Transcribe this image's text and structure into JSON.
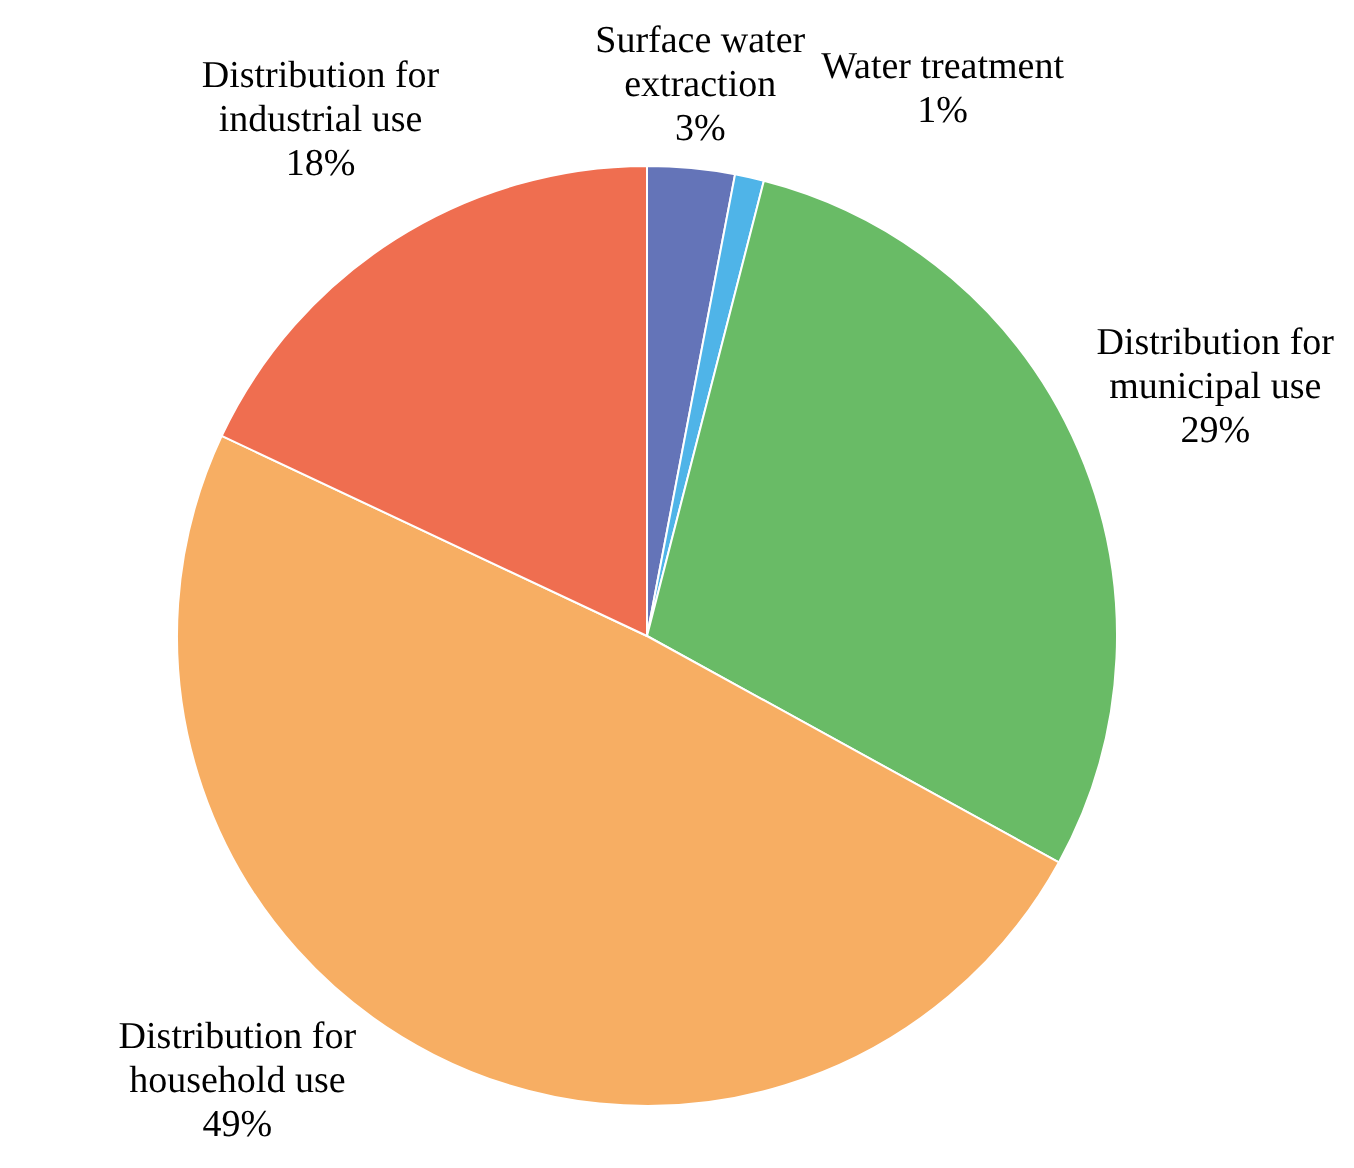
{
  "chart_data": {
    "type": "pie",
    "categories": [
      "Surface water extraction",
      "Water treatment",
      "Distribution for municipal use",
      "Distribution for household use",
      "Distribution for industrial use"
    ],
    "values": [
      3,
      1,
      29,
      49,
      18
    ],
    "value_labels": [
      "3%",
      "1%",
      "29%",
      "49%",
      "18%"
    ],
    "colors": [
      "#6474b8",
      "#4fb4e8",
      "#69bb66",
      "#f7ae63",
      "#ef6e50"
    ],
    "legend": false
  }
}
